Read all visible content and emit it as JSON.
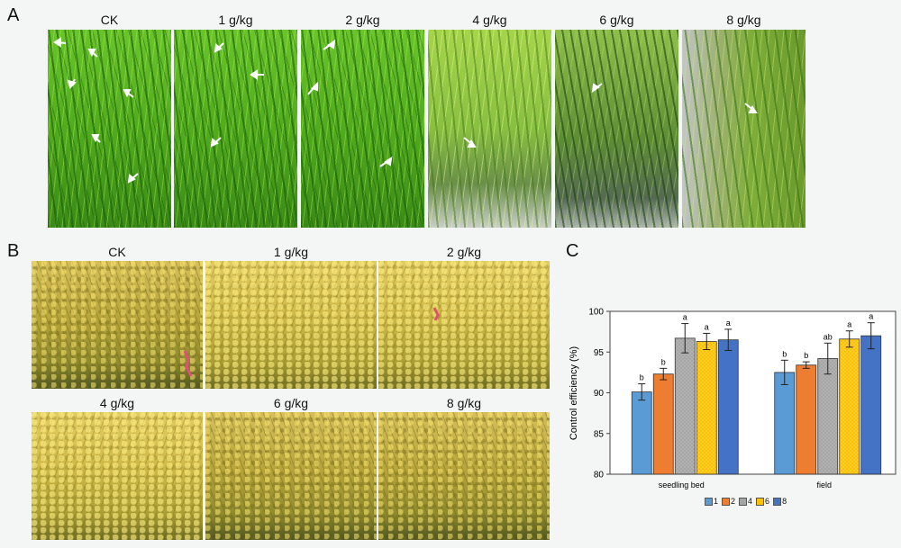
{
  "panel_a": {
    "letter": "A",
    "labels": [
      "CK",
      "1 g/kg",
      "2 g/kg",
      "4 g/kg",
      "6 g/kg",
      "8 g/kg"
    ]
  },
  "panel_b": {
    "letter": "B",
    "labels": [
      "CK",
      "1 g/kg",
      "2 g/kg",
      "4 g/kg",
      "6 g/kg",
      "8 g/kg"
    ]
  },
  "panel_c": {
    "letter": "C"
  },
  "chart_data": {
    "type": "bar",
    "categories": [
      "seedling bed",
      "field"
    ],
    "ylabel": "Control efficiency (%)",
    "xlabel": "",
    "ylim": [
      80,
      100
    ],
    "yticks": [
      80,
      85,
      90,
      95,
      100
    ],
    "legend_position": "bottom",
    "series": [
      {
        "name": "1",
        "color": "#5b9bd5",
        "pattern": "solid",
        "values": [
          90.1,
          92.5
        ],
        "errors": [
          1.0,
          1.5
        ],
        "letters": [
          "b",
          "b"
        ]
      },
      {
        "name": "2",
        "color": "#ed7d31",
        "pattern": "solid",
        "values": [
          92.3,
          93.4
        ],
        "errors": [
          0.7,
          0.4
        ],
        "letters": [
          "b",
          "b"
        ]
      },
      {
        "name": "4",
        "color": "#a5a5a5",
        "pattern": "dots",
        "values": [
          96.7,
          94.2
        ],
        "errors": [
          1.8,
          1.9
        ],
        "letters": [
          "a",
          "ab"
        ]
      },
      {
        "name": "6",
        "color": "#ffc000",
        "pattern": "dots",
        "values": [
          96.3,
          96.6
        ],
        "errors": [
          1.0,
          1.0
        ],
        "letters": [
          "a",
          "a"
        ]
      },
      {
        "name": "8",
        "color": "#4472c4",
        "pattern": "solid",
        "values": [
          96.5,
          97.0
        ],
        "errors": [
          1.3,
          1.6
        ],
        "letters": [
          "a",
          "a"
        ]
      }
    ]
  }
}
